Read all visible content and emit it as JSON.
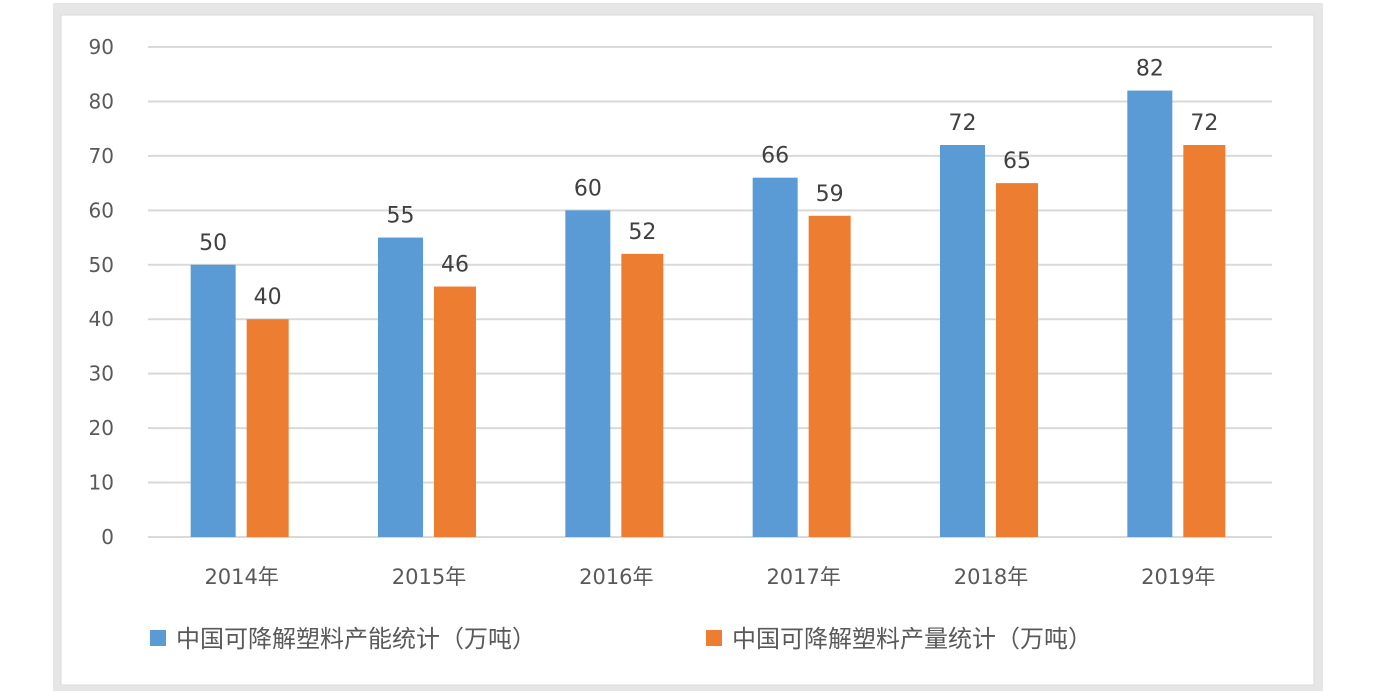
{
  "chart_data": {
    "type": "bar",
    "title": "",
    "xlabel": "",
    "ylabel": "",
    "categories": [
      "2014年",
      "2015年",
      "2016年",
      "2017年",
      "2018年",
      "2019年"
    ],
    "series": [
      {
        "name": "中国可降解塑料产能统计（万吨）",
        "color": "#5B9BD5",
        "values": [
          50,
          55,
          60,
          66,
          72,
          82
        ]
      },
      {
        "name": "中国可降解塑料产量统计（万吨）",
        "color": "#ED7D31",
        "values": [
          40,
          46,
          52,
          59,
          65,
          72
        ]
      }
    ],
    "ylim": [
      0,
      90
    ],
    "yticks": [
      0,
      10,
      20,
      30,
      40,
      50,
      60,
      70,
      80,
      90
    ],
    "grid": true,
    "legend": "bottom",
    "data_labels": true
  }
}
